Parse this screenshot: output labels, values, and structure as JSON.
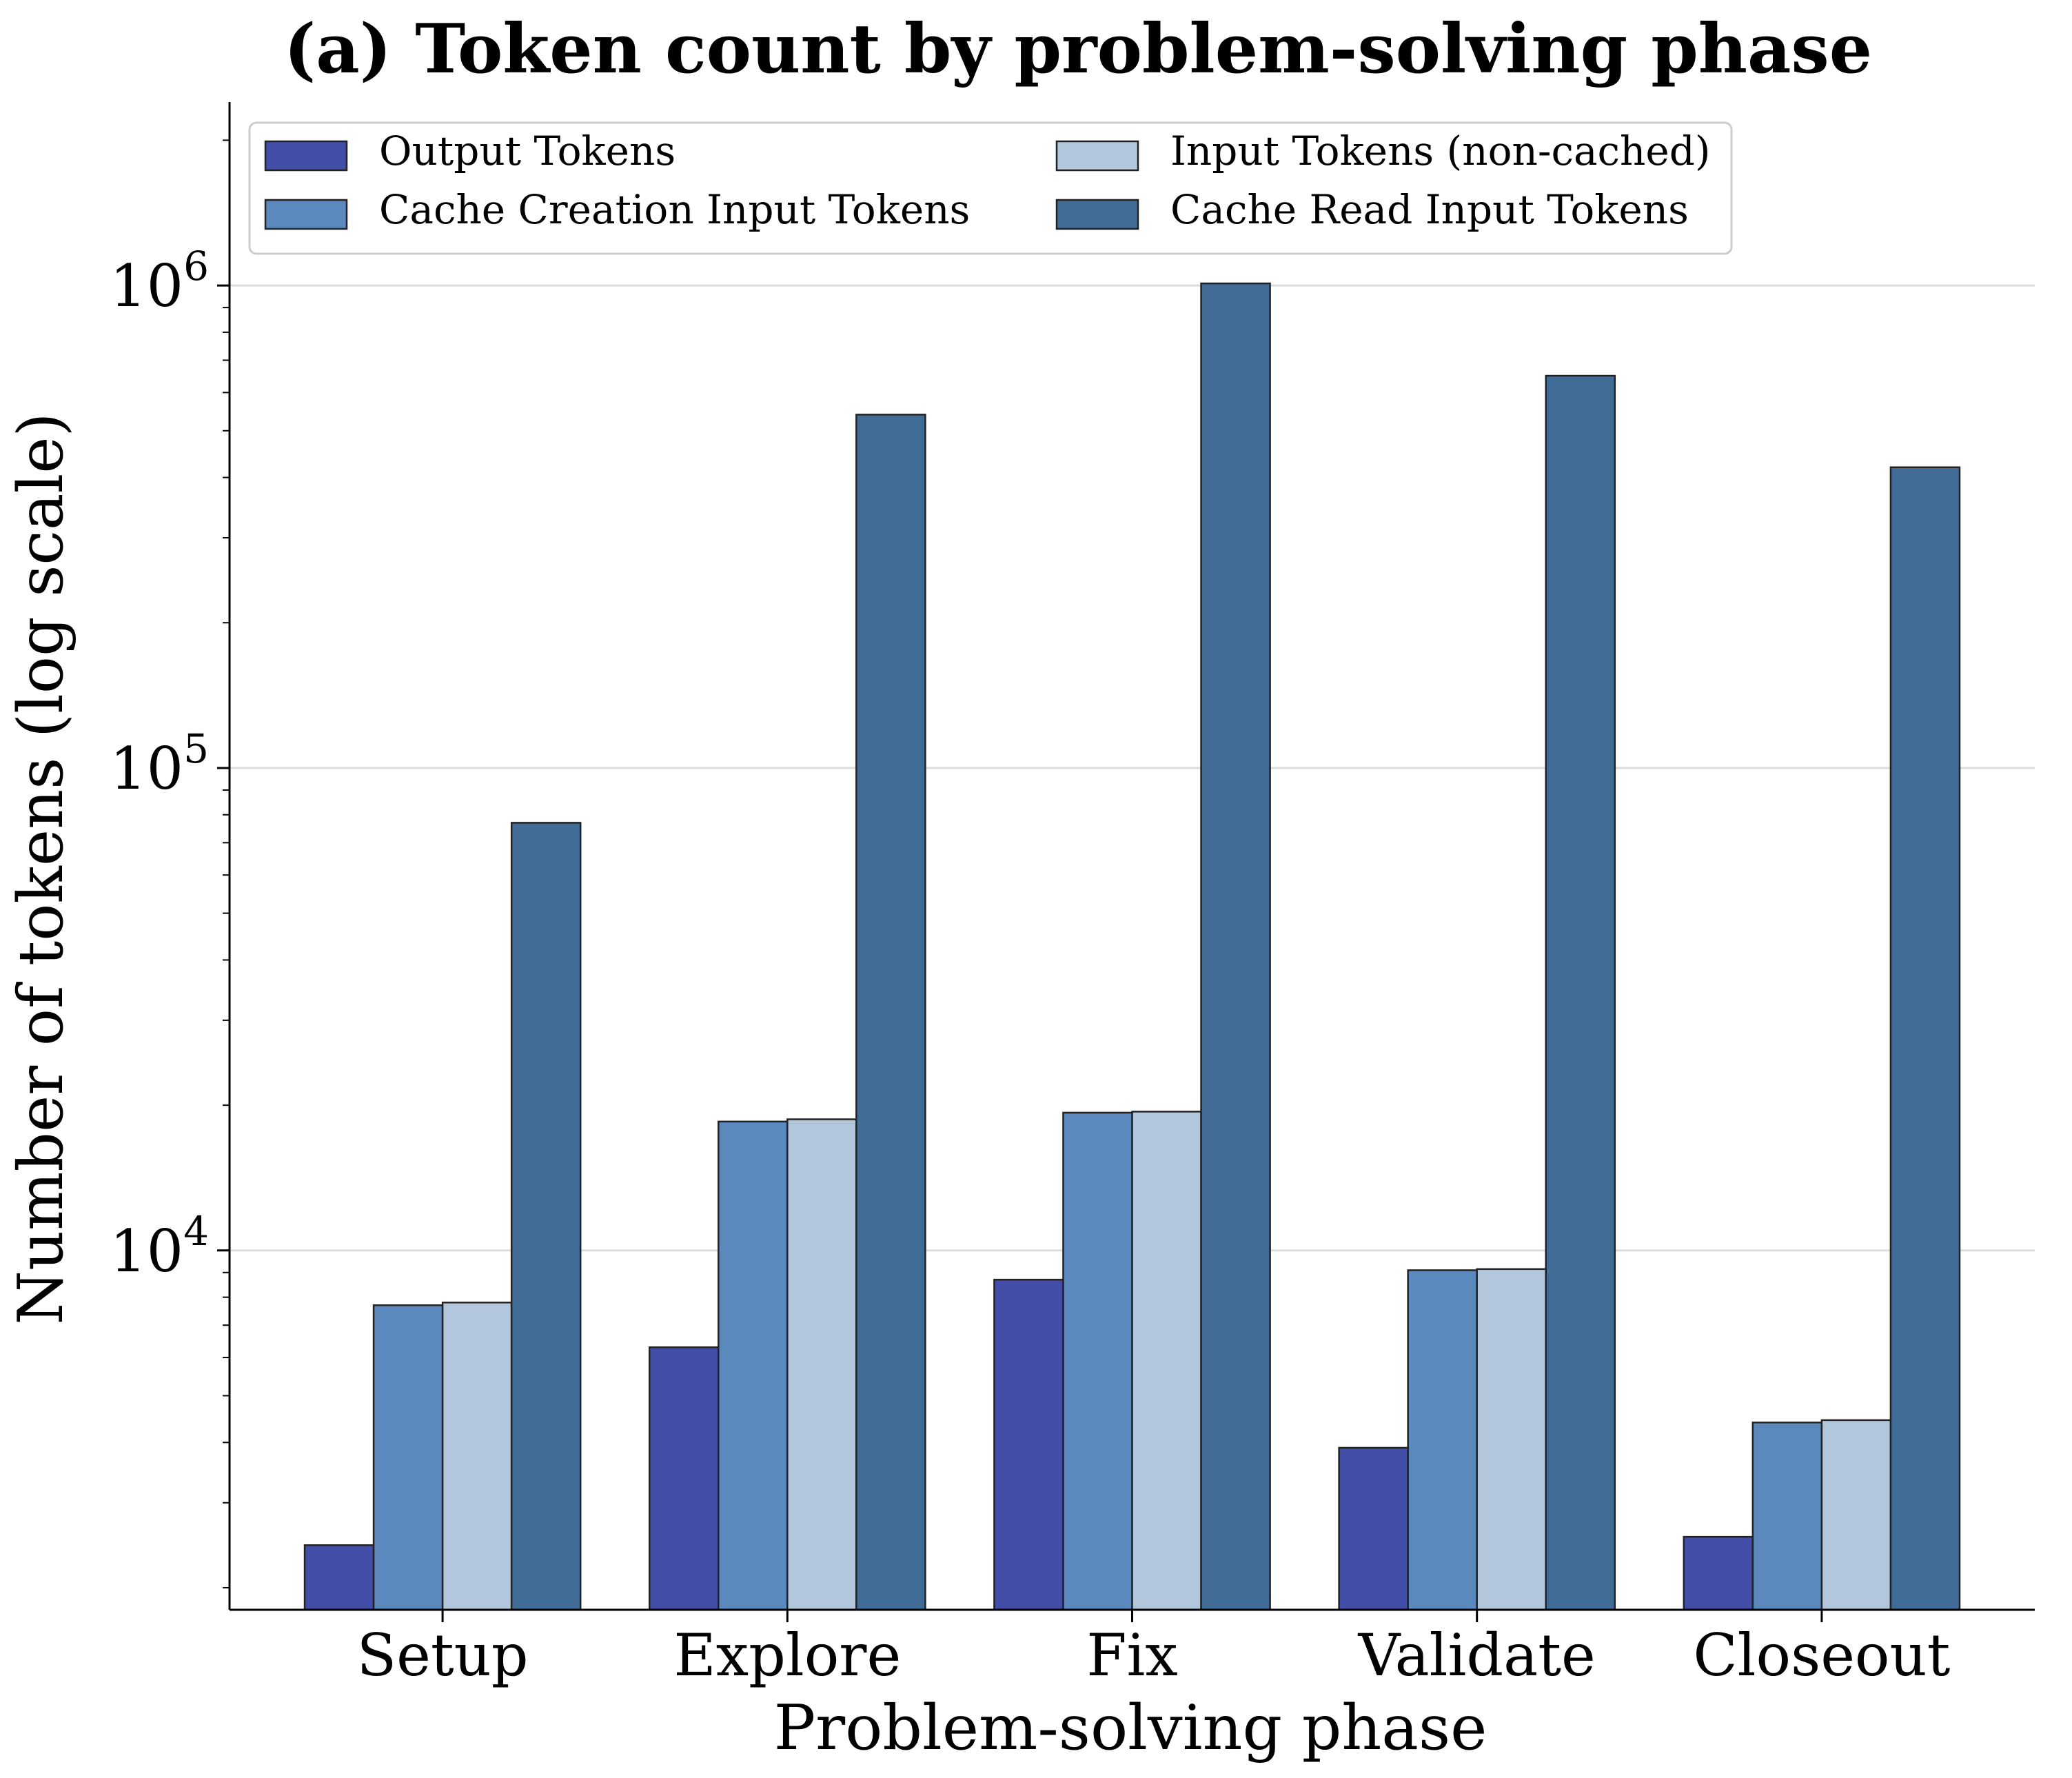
{
  "chart_data": {
    "type": "bar",
    "title": "(a) Token count by problem-solving phase",
    "xlabel": "Problem-solving phase",
    "ylabel": "Number of tokens (log scale)",
    "yscale": "log",
    "ylim": [
      1800,
      2400000
    ],
    "yticks": [
      {
        "value": 10000,
        "base": "10",
        "exp": "4"
      },
      {
        "value": 100000,
        "base": "10",
        "exp": "5"
      },
      {
        "value": 1000000,
        "base": "10",
        "exp": "6"
      }
    ],
    "grid": "horizontal major",
    "legend_position": "top-left",
    "categories": [
      "Setup",
      "Explore",
      "Fix",
      "Validate",
      "Closeout"
    ],
    "series": [
      {
        "name": "Output Tokens",
        "color": "#434ea8",
        "values": [
          2450,
          6300,
          8700,
          3900,
          2550
        ]
      },
      {
        "name": "Cache Creation Input Tokens",
        "color": "#5b89bd",
        "values": [
          7700,
          18500,
          19300,
          9100,
          4400
        ]
      },
      {
        "name": "Input Tokens (non-cached)",
        "color": "#b2c6dc",
        "values": [
          7800,
          18700,
          19400,
          9150,
          4450
        ]
      },
      {
        "name": "Cache Read Input Tokens",
        "color": "#416c96",
        "values": [
          77000,
          540000,
          1010000,
          650000,
          420000
        ]
      }
    ]
  }
}
